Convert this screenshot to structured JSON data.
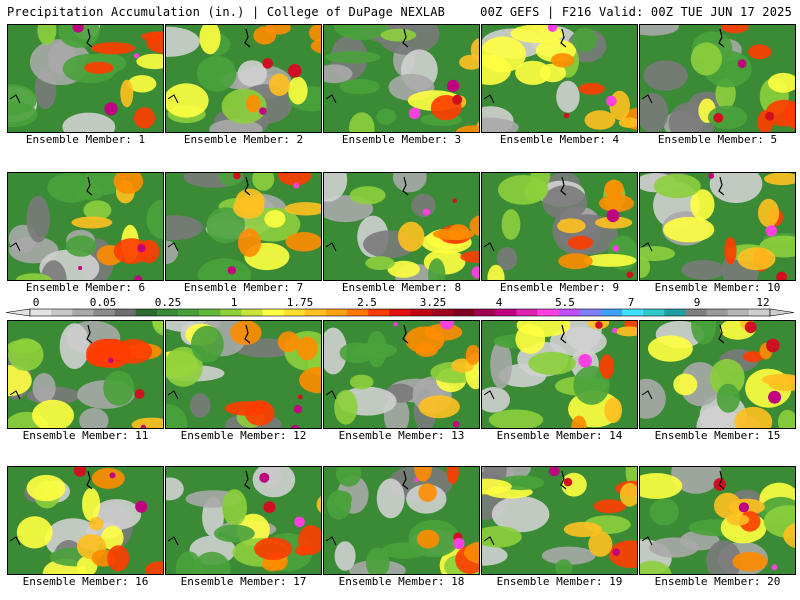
{
  "header": {
    "left": "Precipitation Accumulation (in.) | College of DuPage NEXLAB",
    "right": "00Z GEFS | F216 Valid: 00Z TUE JUN 17 2025"
  },
  "member_label": "Ensemble Member:",
  "members": [
    {
      "num": 1
    },
    {
      "num": 2
    },
    {
      "num": 3
    },
    {
      "num": 4
    },
    {
      "num": 5
    },
    {
      "num": 6
    },
    {
      "num": 7
    },
    {
      "num": 8
    },
    {
      "num": 9
    },
    {
      "num": 10
    },
    {
      "num": 11
    },
    {
      "num": 12
    },
    {
      "num": 13
    },
    {
      "num": 14
    },
    {
      "num": 15
    },
    {
      "num": 16
    },
    {
      "num": 17
    },
    {
      "num": 18
    },
    {
      "num": 19
    },
    {
      "num": 20
    }
  ],
  "colorbar": {
    "tick_labels": [
      "0",
      "0.05",
      "0.25",
      "1",
      "1.75",
      "2.5",
      "3.25",
      "4",
      "5.5",
      "7",
      "9",
      "12"
    ],
    "colors": [
      "#e2e2e2",
      "#c8c8c8",
      "#aaaaaa",
      "#8c8c8c",
      "#6e6e6e",
      "#2f6a2f",
      "#3b8a35",
      "#48a03a",
      "#62b83a",
      "#90d03a",
      "#c8e63a",
      "#ffff40",
      "#ffe030",
      "#ffc020",
      "#ffa010",
      "#ff7800",
      "#ff3c00",
      "#e01010",
      "#c00010",
      "#a00020",
      "#800020",
      "#a00050",
      "#c00080",
      "#e020b0",
      "#ff40e0",
      "#c050ff",
      "#8080ff",
      "#40a0ff",
      "#40e0ff",
      "#30c8c8",
      "#20a0a0",
      "#808080",
      "#9a9a9a",
      "#b4b4b4",
      "#cecece"
    ]
  }
}
